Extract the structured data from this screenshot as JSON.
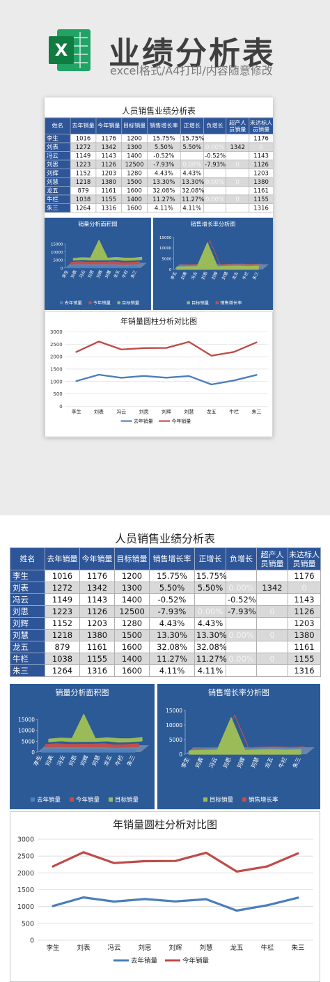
{
  "header": {
    "icon_label": "X",
    "title": "业绩分析表",
    "subtitle": "excel格式/A4打印/内容随意修改"
  },
  "sheet": {
    "title": "人员销售业绩分析表",
    "table": {
      "columns": [
        "姓名",
        "去年销量",
        "今年销量",
        "目标销量",
        "销售增长率",
        "正增长",
        "负增长",
        "超产人员销量",
        "未达标人员销量"
      ],
      "rows": [
        [
          "李生",
          1016,
          1176,
          1200,
          "15.75%",
          "15.75%",
          null,
          null,
          1176
        ],
        [
          "刘表",
          1272,
          1342,
          1300,
          "5.50%",
          "5.50%",
          "0.00%",
          1342,
          0
        ],
        [
          "冯云",
          1149,
          1143,
          1400,
          "-0.52%",
          null,
          "-0.52%",
          null,
          1143
        ],
        [
          "刘思",
          1223,
          1126,
          12500,
          "-7.93%",
          "0.00%",
          "-7.93%",
          0,
          1126
        ],
        [
          "刘辉",
          1152,
          1203,
          1280,
          "4.43%",
          "4.43%",
          null,
          null,
          1203
        ],
        [
          "刘慧",
          1218,
          1380,
          1500,
          "13.30%",
          "13.30%",
          "0.00%",
          0,
          1380
        ],
        [
          "龙五",
          879,
          1161,
          1600,
          "32.08%",
          "32.08%",
          null,
          null,
          1161
        ],
        [
          "牛栏",
          1038,
          1155,
          1400,
          "11.27%",
          "11.27%",
          "0.00%",
          0,
          1155
        ],
        [
          "朱三",
          1264,
          1316,
          1600,
          "4.11%",
          "4.11%",
          null,
          null,
          1316
        ]
      ]
    },
    "charts": [
      {
        "type": "area",
        "title": "销量分析面积图",
        "stacked": true,
        "categories": [
          "李生",
          "刘表",
          "冯云",
          "刘思",
          "刘辉",
          "刘慧",
          "龙五",
          "牛栏",
          "朱三"
        ],
        "ylim": [
          0,
          15000
        ],
        "yticks": [
          0,
          5000,
          10000,
          15000
        ],
        "series": [
          {
            "name": "去年销量",
            "color": "#4f81bd",
            "values": [
              1016,
              1272,
              1149,
              1223,
              1152,
              1218,
              879,
              1038,
              1264
            ]
          },
          {
            "name": "今年销量",
            "color": "#c0504d",
            "values": [
              1176,
              1342,
              1143,
              1126,
              1203,
              1380,
              1161,
              1155,
              1316
            ]
          },
          {
            "name": "目标销量",
            "color": "#9bbb59",
            "values": [
              1200,
              1300,
              1400,
              12500,
              1280,
              1500,
              1600,
              1400,
              1600
            ]
          }
        ]
      },
      {
        "type": "area",
        "title": "销售增长率分析图",
        "stacked": true,
        "categories": [
          "李生",
          "刘表",
          "冯云",
          "刘思",
          "刘辉",
          "刘慧",
          "龙五",
          "牛栏",
          "朱三"
        ],
        "ylim": [
          0,
          15000
        ],
        "yticks": [
          0,
          5000,
          10000,
          15000
        ],
        "series": [
          {
            "name": "目标销量",
            "color": "#9bbb59",
            "values": [
              1200,
              1300,
              1400,
              12500,
              1280,
              1500,
              1600,
              1400,
              1600
            ]
          },
          {
            "name": "销售增长率",
            "color": "#c0504d",
            "values": [
              0.1575,
              0.055,
              -0.0052,
              -0.0793,
              0.0443,
              0.133,
              0.3208,
              0.1127,
              0.0411
            ]
          }
        ]
      },
      {
        "type": "line",
        "title": "年销量圆柱分析对比图",
        "stacked": true,
        "grid": true,
        "categories": [
          "李生",
          "刘表",
          "冯云",
          "刘思",
          "刘辉",
          "刘慧",
          "龙五",
          "牛栏",
          "朱三"
        ],
        "ylim": [
          0,
          3000
        ],
        "yticks": [
          0,
          500,
          1000,
          1500,
          2000,
          2500,
          3000
        ],
        "series": [
          {
            "name": "去年销量",
            "color": "#4a7ebb",
            "values": [
              1016,
              1272,
              1149,
              1223,
              1152,
              1218,
              879,
              1038,
              1264
            ]
          },
          {
            "name": "今年销量",
            "color": "#be4b48",
            "values": [
              1176,
              1342,
              1143,
              1126,
              1203,
              1380,
              1161,
              1155,
              1316
            ]
          }
        ]
      }
    ]
  }
}
